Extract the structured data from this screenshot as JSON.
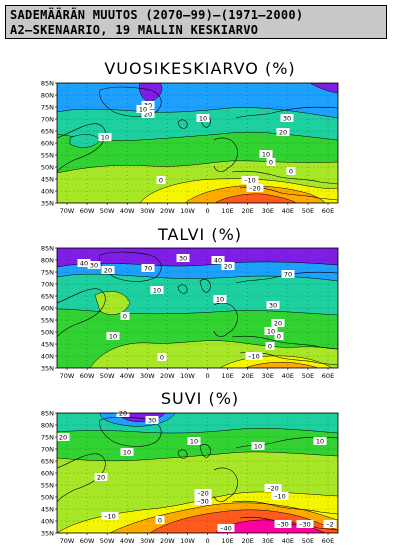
{
  "header": {
    "line1": "SADEMÄÄRÄN MUUTOS (2070–99)–(1971–2000)",
    "line2": "A2–SKENAARIO, 19 MALLIN KESKIARVO"
  },
  "lat_labels": [
    "85N",
    "80N",
    "75N",
    "70N",
    "65N",
    "60N",
    "55N",
    "50N",
    "45N",
    "40N",
    "35N"
  ],
  "lon_labels": [
    "70W",
    "60W",
    "50W",
    "40W",
    "30W",
    "20W",
    "10W",
    "0",
    "10E",
    "20E",
    "30E",
    "40E",
    "50E",
    "60E"
  ],
  "colors": {
    "very_dry": "#ff00a0",
    "dry": "#ff5a1e",
    "slightly_dry": "#ffaa00",
    "neutral": "#f5f500",
    "slightly_wet": "#a8e628",
    "wet": "#32d232",
    "wetter": "#1ecfa0",
    "much_wetter": "#1ea0ff",
    "very_wet": "#7e1ee6"
  },
  "panels": [
    {
      "title": "VUOSIKESKIARVO (%)",
      "contour_labels": [
        "30",
        "20",
        "10",
        "10",
        "30",
        "20",
        "10",
        "0",
        "0",
        "0",
        "–10",
        "–20",
        "10"
      ]
    },
    {
      "title": "TALVI (%)",
      "contour_labels": [
        "30",
        "40",
        "30",
        "20",
        "40",
        "20",
        "70",
        "70",
        "10",
        "10",
        "30",
        "20",
        "0",
        "10",
        "10",
        "0",
        "–10",
        "0",
        "0"
      ]
    },
    {
      "title": "SUVI (%)",
      "contour_labels": [
        "20",
        "30",
        "20",
        "10",
        "20",
        "10",
        "10",
        "10",
        "–20",
        "–30",
        "–10",
        "–20",
        "–10",
        "0",
        "–40",
        "–30",
        "–30",
        "–2"
      ]
    }
  ]
}
